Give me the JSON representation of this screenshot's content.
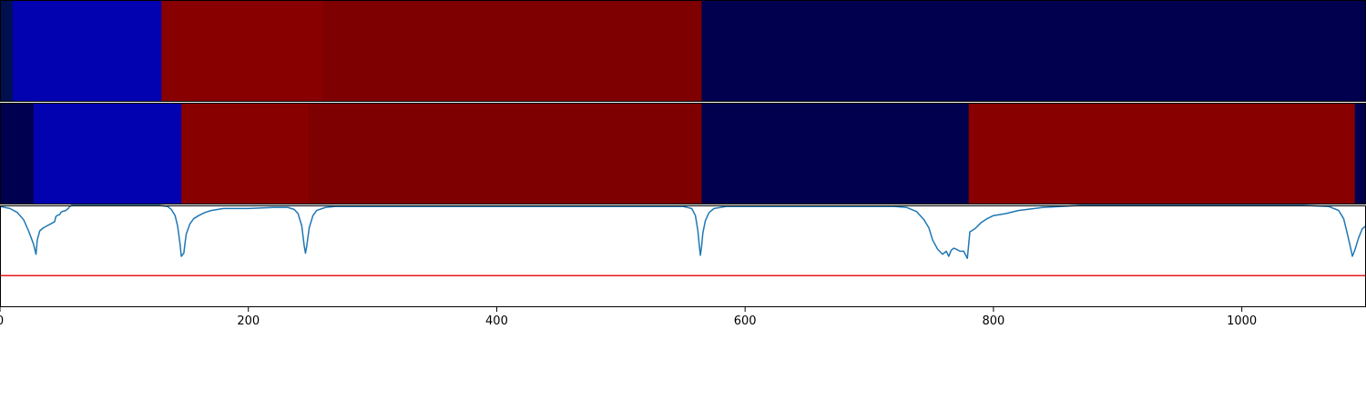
{
  "chart_data": [
    {
      "type": "heatmap",
      "panel": "top-strip",
      "x_range": [
        0,
        1100
      ],
      "colormap": "seismic",
      "segments": [
        {
          "x0": 0,
          "x1": 10,
          "color": "#00104f"
        },
        {
          "x0": 10,
          "x1": 130,
          "color": "#0202b0"
        },
        {
          "x0": 130,
          "x1": 260,
          "color": "#890000"
        },
        {
          "x0": 260,
          "x1": 565,
          "color": "#7e0000"
        },
        {
          "x0": 565,
          "x1": 1100,
          "color": "#00004f"
        }
      ]
    },
    {
      "type": "heatmap",
      "panel": "middle-strip",
      "x_range": [
        0,
        1100
      ],
      "colormap": "seismic",
      "segments": [
        {
          "x0": 0,
          "x1": 27,
          "color": "#000050"
        },
        {
          "x0": 27,
          "x1": 146,
          "color": "#0202b0"
        },
        {
          "x0": 146,
          "x1": 248,
          "color": "#890000"
        },
        {
          "x0": 248,
          "x1": 565,
          "color": "#7e0000"
        },
        {
          "x0": 565,
          "x1": 780,
          "color": "#00004f"
        },
        {
          "x0": 780,
          "x1": 1091,
          "color": "#880000"
        },
        {
          "x0": 1091,
          "x1": 1100,
          "color": "#00004f"
        }
      ]
    },
    {
      "type": "line",
      "panel": "bottom-line",
      "x_range": [
        0,
        1100
      ],
      "y_range": [
        0,
        1
      ],
      "xticks": [
        "0",
        "200",
        "400",
        "600",
        "800",
        "1000"
      ],
      "xtick_values": [
        0,
        200,
        400,
        600,
        800,
        1000
      ],
      "grid": false,
      "threshold": {
        "y": 0.31,
        "color": "#e41a1c"
      },
      "series": [
        {
          "color": "#1f77b4",
          "points": [
            [
              0,
              0.99
            ],
            [
              8,
              0.97
            ],
            [
              14,
              0.93
            ],
            [
              19,
              0.86
            ],
            [
              23,
              0.75
            ],
            [
              27,
              0.62
            ],
            [
              29,
              0.52
            ],
            [
              30,
              0.66
            ],
            [
              32,
              0.75
            ],
            [
              35,
              0.78
            ],
            [
              38,
              0.8
            ],
            [
              41,
              0.82
            ],
            [
              44,
              0.84
            ],
            [
              45,
              0.89
            ],
            [
              46,
              0.9
            ],
            [
              48,
              0.91
            ],
            [
              49,
              0.93
            ],
            [
              50,
              0.94
            ],
            [
              53,
              0.95
            ],
            [
              54,
              0.96
            ],
            [
              55,
              0.97
            ],
            [
              56,
              0.99
            ],
            [
              58,
              1.0
            ],
            [
              75,
              1.0
            ],
            [
              128,
              1.0
            ],
            [
              135,
              0.99
            ],
            [
              138,
              0.96
            ],
            [
              141,
              0.9
            ],
            [
              143,
              0.8
            ],
            [
              145,
              0.62
            ],
            [
              146,
              0.5
            ],
            [
              148,
              0.53
            ],
            [
              149,
              0.63
            ],
            [
              150,
              0.72
            ],
            [
              153,
              0.82
            ],
            [
              156,
              0.87
            ],
            [
              160,
              0.9
            ],
            [
              165,
              0.93
            ],
            [
              170,
              0.95
            ],
            [
              175,
              0.96
            ],
            [
              180,
              0.97
            ],
            [
              200,
              0.97
            ],
            [
              220,
              0.98
            ],
            [
              232,
              0.98
            ],
            [
              237,
              0.96
            ],
            [
              240,
              0.92
            ],
            [
              243,
              0.8
            ],
            [
              245,
              0.6
            ],
            [
              246,
              0.53
            ],
            [
              247,
              0.6
            ],
            [
              249,
              0.78
            ],
            [
              252,
              0.9
            ],
            [
              255,
              0.95
            ],
            [
              262,
              0.98
            ],
            [
              270,
              0.99
            ],
            [
              550,
              0.99
            ],
            [
              557,
              0.97
            ],
            [
              560,
              0.9
            ],
            [
              562,
              0.75
            ],
            [
              563,
              0.62
            ],
            [
              564,
              0.51
            ],
            [
              565,
              0.6
            ],
            [
              566,
              0.73
            ],
            [
              568,
              0.85
            ],
            [
              571,
              0.93
            ],
            [
              575,
              0.97
            ],
            [
              585,
              0.99
            ],
            [
              700,
              0.99
            ],
            [
              720,
              0.99
            ],
            [
              730,
              0.98
            ],
            [
              738,
              0.94
            ],
            [
              744,
              0.86
            ],
            [
              748,
              0.78
            ],
            [
              751,
              0.66
            ],
            [
              755,
              0.57
            ],
            [
              759,
              0.52
            ],
            [
              762,
              0.55
            ],
            [
              764,
              0.5
            ],
            [
              766,
              0.56
            ],
            [
              768,
              0.58
            ],
            [
              770,
              0.57
            ],
            [
              773,
              0.55
            ],
            [
              776,
              0.55
            ],
            [
              779,
              0.48
            ],
            [
              781,
              0.74
            ],
            [
              785,
              0.77
            ],
            [
              790,
              0.83
            ],
            [
              795,
              0.87
            ],
            [
              800,
              0.9
            ],
            [
              810,
              0.92
            ],
            [
              820,
              0.95
            ],
            [
              840,
              0.98
            ],
            [
              870,
              1.0
            ],
            [
              1050,
              1.0
            ],
            [
              1070,
              0.99
            ],
            [
              1078,
              0.95
            ],
            [
              1082,
              0.87
            ],
            [
              1085,
              0.72
            ],
            [
              1088,
              0.56
            ],
            [
              1089,
              0.5
            ],
            [
              1091,
              0.56
            ],
            [
              1094,
              0.68
            ],
            [
              1097,
              0.77
            ],
            [
              1100,
              0.8
            ]
          ]
        }
      ]
    }
  ]
}
